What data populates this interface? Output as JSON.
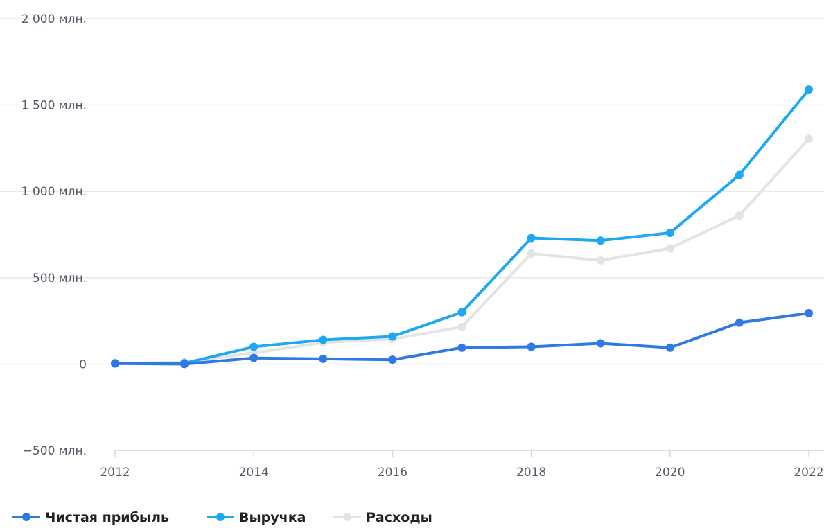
{
  "chart_data": {
    "type": "line",
    "title": "",
    "xlabel": "",
    "ylabel": "",
    "x": [
      2012,
      2013,
      2014,
      2015,
      2016,
      2017,
      2018,
      2019,
      2020,
      2021,
      2022
    ],
    "x_ticks": [
      2012,
      2014,
      2016,
      2018,
      2020,
      2022
    ],
    "x_tick_labels": [
      "2012",
      "2014",
      "2016",
      "2018",
      "2020",
      "2022"
    ],
    "xlim": [
      2012,
      2022
    ],
    "ylim": [
      -500,
      2000
    ],
    "y_ticks": [
      -500,
      0,
      500,
      1000,
      1500,
      2000
    ],
    "y_tick_labels": [
      "−500 млн.",
      "0",
      "500 млн.",
      "1 000 млн.",
      "1 500 млн.",
      "2 000 млн."
    ],
    "grid": true,
    "legend_position": "bottom-left",
    "series": [
      {
        "name": "Расходы",
        "color": "#e3e3e3",
        "values": [
          5,
          10,
          65,
          125,
          145,
          215,
          640,
          600,
          670,
          860,
          1305
        ]
      },
      {
        "name": "Выручка",
        "color": "#1ea7f2",
        "values": [
          5,
          5,
          100,
          140,
          160,
          300,
          730,
          715,
          760,
          1095,
          1590
        ]
      },
      {
        "name": "Чистая прибыль",
        "color": "#2f78e6",
        "values": [
          3,
          0,
          35,
          30,
          25,
          95,
          100,
          120,
          95,
          240,
          295
        ]
      }
    ],
    "legend_order": [
      "Чистая прибыль",
      "Выручка",
      "Расходы"
    ]
  }
}
